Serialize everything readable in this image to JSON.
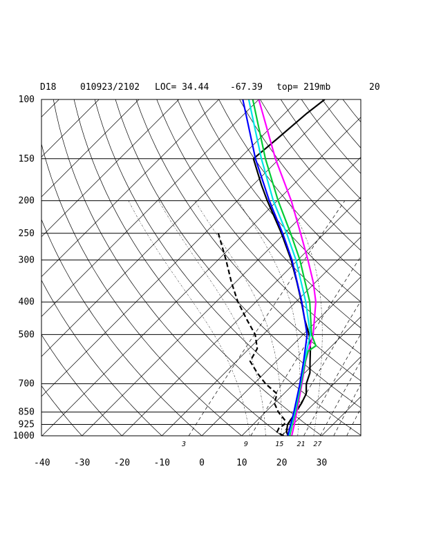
{
  "header": {
    "id": "D18",
    "datetime": "010923/2102",
    "loc": "LOC= 34.44",
    "lon": "-67.39",
    "top": "top= 219mb",
    "number": "20"
  },
  "chart_data": {
    "type": "line",
    "title": "",
    "xlabel": "",
    "ylabel": "",
    "x_scale": "skew-T (temperature °C, skewed 45°)",
    "y_scale": "log pressure (mb)",
    "pressure_ticks": [
      100,
      150,
      200,
      250,
      300,
      400,
      500,
      700,
      850,
      925,
      1000
    ],
    "temperature_ticks": [
      -40,
      -30,
      -20,
      -10,
      0,
      10,
      20,
      30
    ],
    "mixing_ratio_labels": [
      "3",
      "9",
      "15",
      "21",
      "27"
    ],
    "xlim": [
      -40,
      40
    ],
    "ylim": [
      1000,
      100
    ],
    "grid": true,
    "legend": "none",
    "series": [
      {
        "color": "#000000",
        "style": "solid",
        "points": [
          [
            1000,
            21.6
          ],
          [
            975,
            20.3
          ],
          [
            925,
            18.6
          ],
          [
            850,
            17.6
          ],
          [
            800,
            16.8
          ],
          [
            750,
            15.6
          ],
          [
            700,
            13.1
          ],
          [
            650,
            11.3
          ],
          [
            600,
            8.4
          ],
          [
            550,
            5.3
          ],
          [
            500,
            1.5
          ],
          [
            450,
            -3.5
          ],
          [
            400,
            -8.6
          ],
          [
            350,
            -14.6
          ],
          [
            300,
            -21.7
          ],
          [
            250,
            -30.8
          ],
          [
            200,
            -42.5
          ],
          [
            180,
            -47.8
          ],
          [
            150,
            -56.5
          ],
          [
            130,
            -55.5
          ],
          [
            110,
            -54.5
          ],
          [
            100,
            -53.5
          ]
        ]
      },
      {
        "color": "#000000",
        "style": "dashed",
        "points": [
          [
            1000,
            20.5
          ],
          [
            975,
            17.9
          ],
          [
            950,
            17.4
          ],
          [
            925,
            17.8
          ],
          [
            900,
            17.0
          ],
          [
            850,
            13.2
          ],
          [
            800,
            10.0
          ],
          [
            750,
            8.3
          ],
          [
            700,
            2.9
          ],
          [
            650,
            -1.9
          ],
          [
            600,
            -6.6
          ],
          [
            550,
            -8.0
          ],
          [
            500,
            -12.0
          ],
          [
            450,
            -18.0
          ],
          [
            400,
            -24.5
          ],
          [
            350,
            -31.0
          ],
          [
            300,
            -38.0
          ],
          [
            250,
            -46.6
          ]
        ]
      },
      {
        "color": "#ff00ff",
        "style": "solid",
        "points": [
          [
            1000,
            22.5
          ],
          [
            925,
            20.3
          ],
          [
            850,
            17.8
          ],
          [
            700,
            12.0
          ],
          [
            600,
            7.3
          ],
          [
            500,
            2.5
          ],
          [
            400,
            -5.0
          ],
          [
            350,
            -10.5
          ],
          [
            300,
            -17.5
          ],
          [
            250,
            -26.0
          ],
          [
            200,
            -36.5
          ],
          [
            150,
            -51.0
          ],
          [
            100,
            -70.0
          ]
        ]
      },
      {
        "color": "#00cc33",
        "style": "solid",
        "points": [
          [
            1000,
            22.0
          ],
          [
            925,
            19.8
          ],
          [
            850,
            17.5
          ],
          [
            700,
            11.8
          ],
          [
            600,
            7.2
          ],
          [
            560,
            5.4
          ],
          [
            540,
            6.0
          ],
          [
            500,
            2.1
          ],
          [
            400,
            -6.5
          ],
          [
            300,
            -19.5
          ],
          [
            250,
            -28.5
          ],
          [
            200,
            -39.8
          ],
          [
            150,
            -53.5
          ],
          [
            100,
            -71.5
          ]
        ]
      },
      {
        "color": "#00e5e5",
        "style": "solid",
        "points": [
          [
            1000,
            21.8
          ],
          [
            925,
            19.6
          ],
          [
            850,
            17.3
          ],
          [
            700,
            11.6
          ],
          [
            600,
            7.0
          ],
          [
            500,
            1.8
          ],
          [
            400,
            -7.5
          ],
          [
            300,
            -20.5
          ],
          [
            250,
            -29.5
          ],
          [
            200,
            -41.0
          ],
          [
            150,
            -54.5
          ],
          [
            100,
            -72.5
          ]
        ]
      },
      {
        "color": "#0000ff",
        "style": "solid",
        "points": [
          [
            1000,
            21.5
          ],
          [
            925,
            19.4
          ],
          [
            850,
            17.1
          ],
          [
            700,
            11.5
          ],
          [
            600,
            6.8
          ],
          [
            500,
            1.0
          ],
          [
            400,
            -8.5
          ],
          [
            300,
            -21.5
          ],
          [
            250,
            -30.5
          ],
          [
            200,
            -42.0
          ],
          [
            150,
            -56.0
          ],
          [
            100,
            -74.0
          ]
        ]
      }
    ]
  }
}
